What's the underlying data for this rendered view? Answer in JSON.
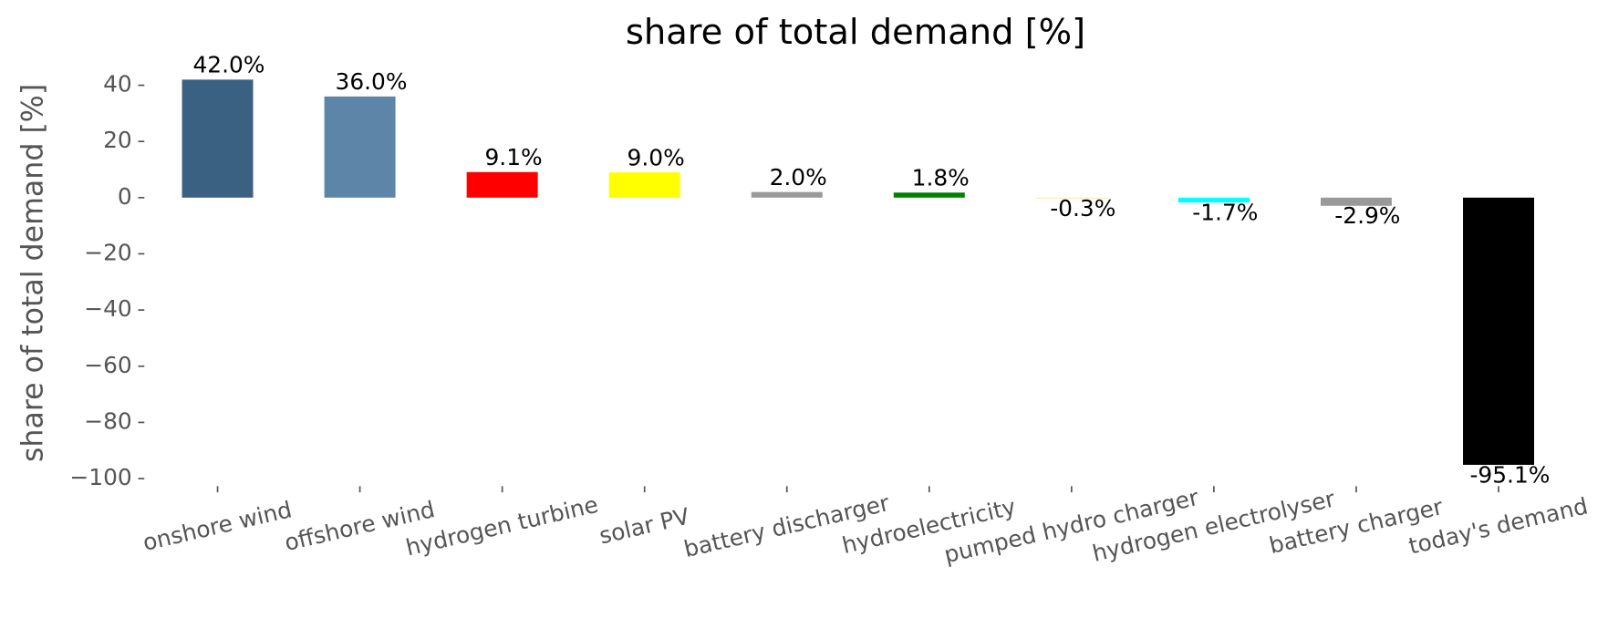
{
  "chart_data": {
    "type": "bar",
    "title": "share of total demand [%]",
    "ylabel": "share of total demand [%]",
    "categories": [
      "onshore wind",
      "offshore wind",
      "hydrogen turbine",
      "solar PV",
      "battery discharger",
      "hydroelectricity",
      "pumped hydro charger",
      "hydrogen electrolyser",
      "battery charger",
      "today's demand"
    ],
    "values": [
      42.0,
      36.0,
      9.1,
      9.0,
      2.0,
      1.8,
      -0.3,
      -1.7,
      -2.9,
      -95.1
    ],
    "value_labels": [
      "42.0%",
      "36.0%",
      "9.1%",
      "9.0%",
      "2.0%",
      "1.8%",
      "-0.3%",
      "-1.7%",
      "-2.9%",
      "-95.1%"
    ],
    "colors": [
      "#3b6182",
      "#5c85a8",
      "#ff0000",
      "#ffff00",
      "#999999",
      "#008000",
      "#ffe4a0",
      "#00ffff",
      "#999999",
      "#000000"
    ],
    "ylim": [
      -101.96,
      48.86
    ],
    "yticks": [
      {
        "value": -100,
        "label": "−100"
      },
      {
        "value": -80,
        "label": "−80"
      },
      {
        "value": -60,
        "label": "−60"
      },
      {
        "value": -40,
        "label": "−40"
      },
      {
        "value": -20,
        "label": "−20"
      },
      0,
      20,
      40
    ],
    "grid": false
  }
}
